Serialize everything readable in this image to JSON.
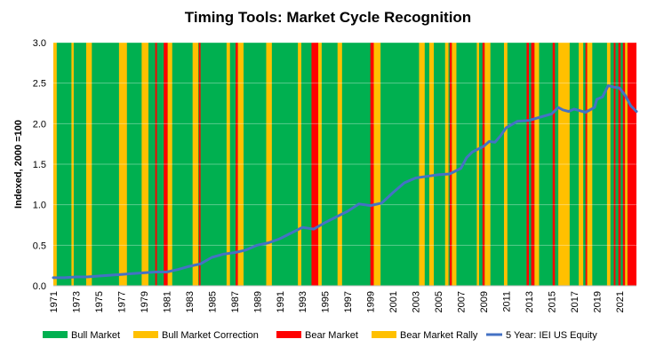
{
  "chart_data": {
    "type": "line",
    "title": "Timing Tools: Market Cycle Recognition",
    "ylabel": "Indexed, 2000 =100",
    "xlabel": "",
    "ylim": [
      0,
      3.0
    ],
    "xlim": [
      1971,
      2022.5
    ],
    "yticks": [
      "0.0",
      "0.5",
      "1.0",
      "1.5",
      "2.0",
      "2.5",
      "3.0"
    ],
    "xticks": [
      "1971",
      "1973",
      "1975",
      "1977",
      "1979",
      "1981",
      "1983",
      "1985",
      "1987",
      "1989",
      "1991",
      "1993",
      "1995",
      "1997",
      "1999",
      "2001",
      "2003",
      "2005",
      "2007",
      "2009",
      "2011",
      "2013",
      "2015",
      "2017",
      "2019",
      "2021"
    ],
    "legend_position": "bottom",
    "legend": [
      {
        "name": "Bull Market",
        "color": "#00b050",
        "kind": "fill"
      },
      {
        "name": "Bull Market Correction",
        "color": "#ffc000",
        "kind": "fill"
      },
      {
        "name": "Bear Market",
        "color": "#ff0000",
        "kind": "fill"
      },
      {
        "name": "Bear Market Rally",
        "color": "#ffc000",
        "kind": "fill"
      },
      {
        "name": "5 Year: IEI US Equity",
        "color": "#4472c4",
        "kind": "line"
      }
    ],
    "regime_background": {
      "default": "Bull Market",
      "periods": [
        {
          "regime": "Bull Market Correction",
          "start": 1971.0,
          "end": 1971.3
        },
        {
          "regime": "Bull Market Correction",
          "start": 1972.6,
          "end": 1972.8
        },
        {
          "regime": "Bull Market Correction",
          "start": 1973.9,
          "end": 1974.4
        },
        {
          "regime": "Bull Market Correction",
          "start": 1976.8,
          "end": 1977.5
        },
        {
          "regime": "Bull Market Correction",
          "start": 1978.8,
          "end": 1979.4
        },
        {
          "regime": "Bear Market",
          "start": 1980.0,
          "end": 1980.15
        },
        {
          "regime": "Bear Market",
          "start": 1980.75,
          "end": 1981.1
        },
        {
          "regime": "Bear Market Rally",
          "start": 1981.1,
          "end": 1981.5
        },
        {
          "regime": "Bull Market Correction",
          "start": 1983.3,
          "end": 1983.8
        },
        {
          "regime": "Bear Market",
          "start": 1983.85,
          "end": 1984.0
        },
        {
          "regime": "Bull Market Correction",
          "start": 1986.3,
          "end": 1986.6
        },
        {
          "regime": "Bear Market",
          "start": 1987.1,
          "end": 1987.3
        },
        {
          "regime": "Bull Market Correction",
          "start": 1987.3,
          "end": 1987.8
        },
        {
          "regime": "Bull Market Correction",
          "start": 1989.8,
          "end": 1990.3
        },
        {
          "regime": "Bull Market Correction",
          "start": 1992.6,
          "end": 1992.9
        },
        {
          "regime": "Bear Market",
          "start": 1993.8,
          "end": 1994.4
        },
        {
          "regime": "Bear Market Rally",
          "start": 1994.4,
          "end": 1994.7
        },
        {
          "regime": "Bull Market Correction",
          "start": 1996.1,
          "end": 1996.5
        },
        {
          "regime": "Bear Market",
          "start": 1999.0,
          "end": 1999.3
        },
        {
          "regime": "Bull Market Correction",
          "start": 1999.3,
          "end": 1999.9
        },
        {
          "regime": "Bull Market Correction",
          "start": 2003.3,
          "end": 2003.8
        },
        {
          "regime": "Bull Market Correction",
          "start": 2004.2,
          "end": 2004.6
        },
        {
          "regime": "Bull Market Correction",
          "start": 2005.6,
          "end": 2005.9
        },
        {
          "regime": "Bear Market",
          "start": 2006.0,
          "end": 2006.2
        },
        {
          "regime": "Bull Market Correction",
          "start": 2006.2,
          "end": 2006.6
        },
        {
          "regime": "Bull Market Correction",
          "start": 2008.4,
          "end": 2008.6
        },
        {
          "regime": "Bear Market",
          "start": 2008.9,
          "end": 2009.1
        },
        {
          "regime": "Bull Market Correction",
          "start": 2009.1,
          "end": 2009.6
        },
        {
          "regime": "Bull Market Correction",
          "start": 2010.8,
          "end": 2011.1
        },
        {
          "regime": "Bear Market",
          "start": 2012.8,
          "end": 2013.0
        },
        {
          "regime": "Bear Market",
          "start": 2013.2,
          "end": 2013.5
        },
        {
          "regime": "Bear Market Rally",
          "start": 2013.5,
          "end": 2013.9
        },
        {
          "regime": "Bear Market",
          "start": 2015.1,
          "end": 2015.3
        },
        {
          "regime": "Bull Market Correction",
          "start": 2015.6,
          "end": 2016.6
        },
        {
          "regime": "Bull Market Correction",
          "start": 2017.4,
          "end": 2017.8
        },
        {
          "regime": "Bear Market",
          "start": 2018.0,
          "end": 2018.15
        },
        {
          "regime": "Bull Market Correction",
          "start": 2018.15,
          "end": 2018.6
        },
        {
          "regime": "Bull Market Correction",
          "start": 2019.9,
          "end": 2020.2
        },
        {
          "regime": "Bear Market",
          "start": 2020.5,
          "end": 2020.65
        },
        {
          "regime": "Bear Market",
          "start": 2020.9,
          "end": 2021.1
        },
        {
          "regime": "Bear Market",
          "start": 2021.3,
          "end": 2021.5
        },
        {
          "regime": "Bear Market",
          "start": 2021.7,
          "end": 2022.5
        },
        {
          "regime": "Bear Market Rally",
          "start": 2021.5,
          "end": 2021.7
        }
      ]
    },
    "series": [
      {
        "name": "5 Year: IEI US Equity",
        "x": [
          1971,
          1972,
          1973,
          1974,
          1975,
          1976,
          1977,
          1978,
          1979,
          1980,
          1981,
          1982,
          1983,
          1984,
          1985,
          1986,
          1987,
          1988,
          1989,
          1990,
          1991,
          1992,
          1993,
          1994,
          1995,
          1996,
          1997,
          1998,
          1999,
          2000,
          2001,
          2002,
          2003,
          2004,
          2005,
          2006,
          2007,
          2007.5,
          2008,
          2009,
          2009.5,
          2010,
          2010.5,
          2011,
          2012,
          2013,
          2014,
          2015,
          2015.6,
          2016,
          2016.5,
          2017,
          2018,
          2018.8,
          2019,
          2019.5,
          2020,
          2020.5,
          2021,
          2021.5,
          2022,
          2022.5
        ],
        "y": [
          0.1,
          0.1,
          0.11,
          0.11,
          0.12,
          0.13,
          0.14,
          0.15,
          0.16,
          0.17,
          0.17,
          0.2,
          0.24,
          0.27,
          0.35,
          0.39,
          0.41,
          0.44,
          0.5,
          0.53,
          0.58,
          0.65,
          0.72,
          0.7,
          0.78,
          0.85,
          0.92,
          1.01,
          0.99,
          1.02,
          1.15,
          1.27,
          1.33,
          1.35,
          1.37,
          1.38,
          1.45,
          1.58,
          1.65,
          1.72,
          1.78,
          1.77,
          1.85,
          1.95,
          2.03,
          2.04,
          2.08,
          2.12,
          2.2,
          2.17,
          2.15,
          2.18,
          2.14,
          2.2,
          2.3,
          2.33,
          2.47,
          2.45,
          2.44,
          2.35,
          2.22,
          2.15
        ]
      }
    ]
  }
}
